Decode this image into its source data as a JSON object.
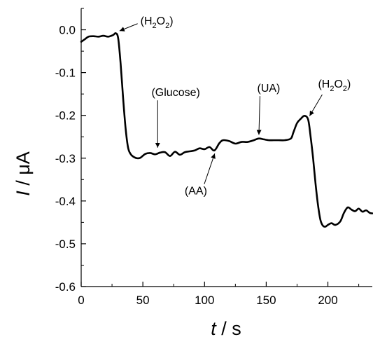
{
  "chart_data": {
    "type": "line",
    "title": "",
    "xlabel": {
      "symbol": "t",
      "unit": " / s"
    },
    "ylabel": {
      "symbol": "I",
      "unit": " / μA"
    },
    "xlim": [
      0,
      236
    ],
    "ylim": [
      -0.6,
      0.05
    ],
    "xticks": [
      0,
      50,
      100,
      150,
      200
    ],
    "yticks": [
      0.0,
      -0.1,
      -0.2,
      -0.3,
      -0.4,
      -0.5,
      -0.6
    ],
    "ytick_labels": [
      "0.0",
      "-0.1",
      "-0.2",
      "-0.3",
      "-0.4",
      "-0.5",
      "-0.6"
    ],
    "xtick_labels": [
      "0",
      "50",
      "100",
      "150",
      "200"
    ],
    "grid": false,
    "line_color": "#000000",
    "series": [
      {
        "x": [
          0,
          3,
          6,
          10,
          14,
          18,
          22,
          26,
          28,
          30,
          32,
          34,
          36,
          38,
          40,
          42,
          45,
          48,
          52,
          56,
          60,
          64,
          68,
          72,
          76,
          80,
          84,
          88,
          92,
          96,
          100,
          104,
          108,
          112,
          115,
          120,
          125,
          130,
          135,
          140,
          144,
          148,
          152,
          156,
          160,
          165,
          170,
          172,
          175,
          178,
          181,
          184,
          186,
          188,
          190,
          192,
          194,
          196,
          198,
          200,
          203,
          206,
          210,
          213,
          216,
          219,
          222,
          225,
          228,
          231,
          234,
          236
        ],
        "y": [
          -0.028,
          -0.022,
          -0.016,
          -0.015,
          -0.016,
          -0.014,
          -0.016,
          -0.012,
          -0.008,
          -0.02,
          -0.08,
          -0.16,
          -0.23,
          -0.275,
          -0.29,
          -0.296,
          -0.3,
          -0.299,
          -0.29,
          -0.288,
          -0.291,
          -0.287,
          -0.286,
          -0.295,
          -0.285,
          -0.292,
          -0.286,
          -0.284,
          -0.282,
          -0.277,
          -0.279,
          -0.274,
          -0.282,
          -0.265,
          -0.258,
          -0.26,
          -0.266,
          -0.262,
          -0.262,
          -0.258,
          -0.254,
          -0.256,
          -0.258,
          -0.258,
          -0.258,
          -0.258,
          -0.254,
          -0.24,
          -0.218,
          -0.208,
          -0.201,
          -0.21,
          -0.25,
          -0.3,
          -0.36,
          -0.41,
          -0.445,
          -0.458,
          -0.46,
          -0.456,
          -0.452,
          -0.456,
          -0.448,
          -0.428,
          -0.415,
          -0.42,
          -0.424,
          -0.418,
          -0.425,
          -0.422,
          -0.428,
          -0.429
        ]
      }
    ],
    "annotations": [
      {
        "label": "(H2O2)",
        "main1": "(H",
        "sub1": "2",
        "main2": "O",
        "sub2": "2",
        "main3": ")",
        "point": [
          29,
          -0.005
        ],
        "text_at": [
          48,
          0.012
        ],
        "text_anchor": "start"
      },
      {
        "label": "(Glucose)",
        "point": [
          62,
          -0.282
        ],
        "text_at": [
          57,
          -0.155
        ],
        "text_anchor": "start"
      },
      {
        "label": "(AA)",
        "point": [
          109,
          -0.283
        ],
        "text_at": [
          93,
          -0.385
        ],
        "text_anchor": "middle"
      },
      {
        "label": "(UA)",
        "point": [
          144,
          -0.252
        ],
        "text_at": [
          152,
          -0.145
        ],
        "text_anchor": "middle"
      },
      {
        "label": "(H2O2)",
        "main1": "(H",
        "sub1": "2",
        "main2": "O",
        "sub2": "2",
        "main3": ")",
        "point": [
          184,
          -0.207
        ],
        "text_at": [
          192,
          -0.135
        ],
        "text_anchor": "start"
      }
    ]
  }
}
